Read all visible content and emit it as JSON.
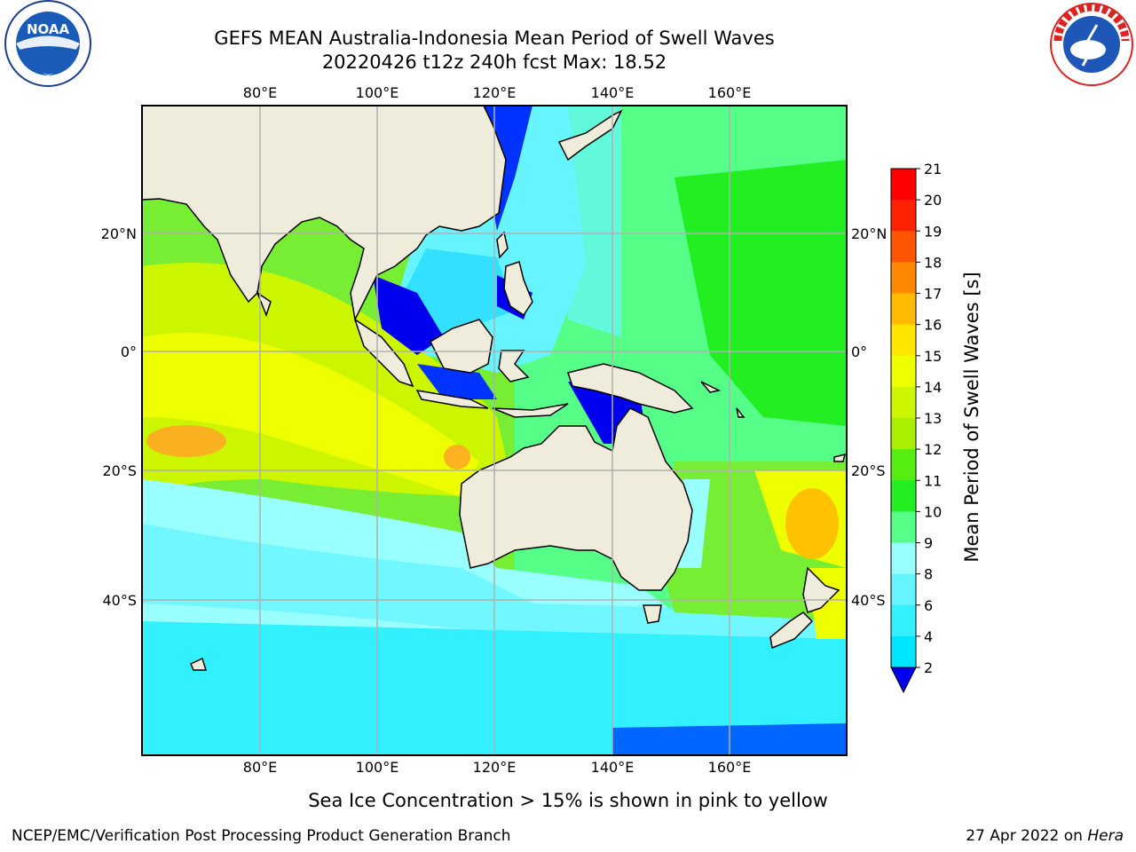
{
  "title": {
    "line1": "GEFS MEAN Australia-Indonesia Mean Period of Swell Waves",
    "line2": "20220426 t12z 240h fcst   Max: 18.52"
  },
  "logos": {
    "left": {
      "icon": "noaa-logo",
      "text": "NOAA"
    },
    "right": {
      "icon": "nws-logo",
      "text": "NATIONAL WEATHER SERVICE"
    }
  },
  "map": {
    "lon_ticks": [
      "80°E",
      "100°E",
      "120°E",
      "140°E",
      "160°E"
    ],
    "lat_ticks_left": [
      "20°N",
      "0°",
      "20°S",
      "40°S"
    ],
    "lat_ticks_right": [
      "20°N",
      "0°",
      "20°S",
      "40°S"
    ],
    "land_color": "#efecdc",
    "grid_color": "#b0b0b0"
  },
  "colorbar": {
    "label": "Mean Period of Swell Waves [s]",
    "ticks": [
      "2",
      "4",
      "6",
      "8",
      "9",
      "10",
      "11",
      "12",
      "13",
      "14",
      "15",
      "16",
      "17",
      "18",
      "19",
      "20",
      "21"
    ],
    "colors": [
      "#0066ff",
      "#00e5ff",
      "#33f0ff",
      "#66f5ff",
      "#99ffff",
      "#55ff88",
      "#22ee22",
      "#55ee11",
      "#aaee00",
      "#ccf500",
      "#eeff00",
      "#ffe600",
      "#ffbb00",
      "#ff8800",
      "#ff5500",
      "#ff2200",
      "#ff0000"
    ],
    "extend_color": "#0000ee"
  },
  "caption": "Sea Ice Concentration > 15% is shown in pink to yellow",
  "footer": {
    "left": "NCEP/EMC/Verification Post Processing Product Generation Branch",
    "right_date": "27 Apr 2022 on ",
    "right_host": "Hera"
  }
}
